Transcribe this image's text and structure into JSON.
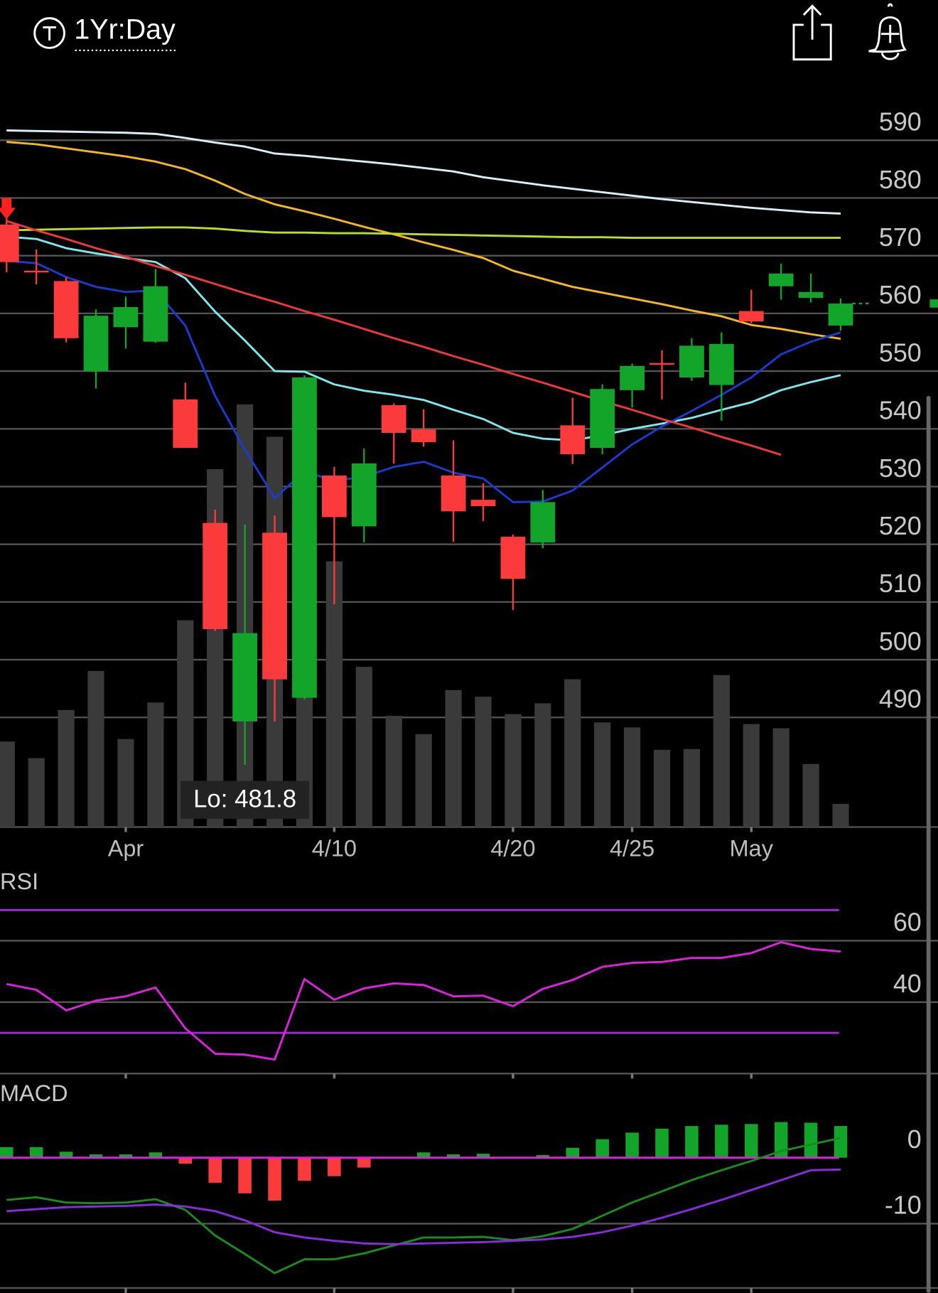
{
  "header": {
    "title": "1Yr:Day"
  },
  "chart_data": [
    {
      "type": "candlestick",
      "categories": [
        null,
        null,
        null,
        null,
        "Apr",
        null,
        null,
        null,
        null,
        null,
        null,
        "4/10",
        null,
        null,
        null,
        null,
        null,
        "4/20",
        null,
        null,
        null,
        "4/25",
        null,
        null,
        null,
        "May",
        null,
        null,
        null
      ],
      "open": [
        575.4,
        567.4,
        565.6,
        550.0,
        557.6,
        555.1,
        545.1,
        523.7,
        489.3,
        522.0,
        493.4,
        531.9,
        523.1,
        544.1,
        539.9,
        531.9,
        527.7,
        521.3,
        520.3,
        540.6,
        536.7,
        546.7,
        551.4,
        548.9,
        547.6,
        560.4,
        564.7,
        562.7,
        557.9
      ],
      "high": [
        578.0,
        571.1,
        566.3,
        560.7,
        562.9,
        567.7,
        548.0,
        526.0,
        523.4,
        525.0,
        549.3,
        533.4,
        536.6,
        544.4,
        543.4,
        538.0,
        530.6,
        521.7,
        529.4,
        545.4,
        547.7,
        551.3,
        553.6,
        555.7,
        556.7,
        564.1,
        568.6,
        566.9,
        562.6
      ],
      "low": [
        567.1,
        565.0,
        555.0,
        547.0,
        553.9,
        554.9,
        536.7,
        505.0,
        481.8,
        489.3,
        493.1,
        509.6,
        520.3,
        534.0,
        536.9,
        520.4,
        524.0,
        508.6,
        519.3,
        533.9,
        535.6,
        543.7,
        545.1,
        548.3,
        541.4,
        558.3,
        562.4,
        561.9,
        557.0
      ],
      "close": [
        568.9,
        567.1,
        555.7,
        559.6,
        561.1,
        564.7,
        536.7,
        505.3,
        504.6,
        496.6,
        548.9,
        524.7,
        534.0,
        539.3,
        537.7,
        525.7,
        526.6,
        514.0,
        527.3,
        535.6,
        546.9,
        550.9,
        551.1,
        554.4,
        554.7,
        558.6,
        566.9,
        563.7,
        561.7
      ],
      "up_color": "#12a52a",
      "down_color": "#fb3b3b",
      "volume": [
        103,
        83,
        141,
        188,
        106,
        150,
        249,
        431,
        509,
        470,
        520,
        320,
        193,
        134,
        112,
        165,
        157,
        136,
        149,
        178,
        126,
        120,
        93,
        94,
        183,
        124,
        119,
        76,
        28
      ],
      "volume_color": "#3a3a3a",
      "series": [
        {
          "color": "#d8f0f5",
          "values": [
            591.7,
            591.6,
            591.5,
            591.4,
            591.3,
            591.1,
            590.4,
            589.6,
            588.9,
            587.7,
            587.3,
            586.8,
            586.3,
            585.8,
            585.2,
            584.6,
            583.6,
            582.9,
            582.2,
            581.6,
            581.0,
            580.4,
            579.8,
            579.3,
            578.8,
            578.3,
            577.9,
            577.5,
            577.3
          ]
        },
        {
          "color": "#f5b820",
          "values": [
            589.7,
            589.3,
            588.6,
            587.9,
            587.2,
            586.3,
            585.0,
            583.0,
            580.7,
            578.9,
            577.7,
            576.4,
            575.0,
            573.7,
            572.3,
            571.0,
            569.6,
            567.4,
            566.0,
            564.6,
            563.6,
            562.6,
            561.6,
            560.5,
            559.5,
            558.0,
            557.3,
            556.4,
            555.6
          ]
        },
        {
          "color": "#b8e020",
          "values": [
            574.4,
            574.5,
            574.6,
            574.7,
            574.8,
            574.9,
            574.9,
            574.7,
            574.3,
            574.0,
            574.0,
            573.9,
            573.9,
            573.8,
            573.7,
            573.6,
            573.5,
            573.4,
            573.3,
            573.2,
            573.2,
            573.1,
            573.1,
            573.1,
            573.1,
            573.1,
            573.1,
            573.1,
            573.1
          ]
        },
        {
          "color": "#7fe8ec",
          "values": [
            573.3,
            572.9,
            571.3,
            570.4,
            569.6,
            568.9,
            566.1,
            560.3,
            555.3,
            550.0,
            549.9,
            547.7,
            546.6,
            545.9,
            545.0,
            543.3,
            541.7,
            539.3,
            538.3,
            538.0,
            538.9,
            540.0,
            540.9,
            541.9,
            543.3,
            544.6,
            546.7,
            548.1,
            549.3
          ]
        },
        {
          "color": "#1a3ad0",
          "values": [
            569.1,
            568.7,
            566.3,
            564.6,
            563.7,
            564.0,
            557.9,
            545.7,
            536.4,
            528.0,
            532.6,
            531.0,
            531.7,
            533.4,
            534.3,
            532.4,
            531.4,
            527.3,
            527.4,
            529.3,
            533.3,
            537.3,
            540.4,
            543.1,
            545.9,
            548.9,
            552.9,
            555.1,
            556.7
          ]
        },
        {
          "color": "#f03838",
          "values": [
            576.0,
            574.4,
            572.9,
            571.3,
            569.8,
            568.2,
            566.7,
            565.1,
            563.5,
            562.0,
            560.4,
            558.9,
            557.3,
            555.7,
            554.2,
            552.6,
            551.1,
            549.5,
            548.0,
            546.4,
            544.8,
            543.3,
            541.7,
            540.2,
            538.6,
            537.1,
            535.5,
            null,
            null
          ]
        }
      ],
      "annotation": "Lo: 481.8",
      "ylim": [
        471,
        600
      ],
      "yticks": [
        490,
        500,
        510,
        520,
        530,
        540,
        550,
        560,
        570,
        580,
        590
      ],
      "grid": true,
      "grid_color": "#555555"
    },
    {
      "type": "line",
      "title": "RSI",
      "series": [
        {
          "color": "#e020e0",
          "values": [
            45.9,
            44.0,
            37.3,
            40.5,
            41.9,
            44.8,
            31.5,
            23.2,
            22.9,
            21.3,
            47.5,
            40.8,
            44.5,
            46.1,
            45.6,
            41.9,
            42.1,
            38.7,
            44.3,
            47.2,
            51.5,
            52.8,
            53.1,
            54.4,
            54.4,
            56.0,
            59.5,
            57.3,
            56.5
          ]
        }
      ],
      "levels": [
        30,
        70
      ],
      "level_color": "#9b30d0",
      "ylim": [
        17,
        75
      ],
      "yticks": [
        40,
        60
      ],
      "grid": true,
      "grid_color": "#555555"
    },
    {
      "type": "bar",
      "title": "MACD",
      "values": [
        1.6,
        1.6,
        0.9,
        0.5,
        0.5,
        0.8,
        -0.9,
        -3.8,
        -5.4,
        -6.5,
        -3.5,
        -2.8,
        -1.5,
        0,
        0.8,
        0.5,
        0.6,
        0,
        0.4,
        1.5,
        2.8,
        3.8,
        4.4,
        4.8,
        5.0,
        5.1,
        5.4,
        5.3,
        4.8
      ],
      "up_color": "#12a52a",
      "down_color": "#fb3b3b",
      "series": [
        {
          "color": "#1a8c1a",
          "values": [
            -6.4,
            -6.0,
            -6.8,
            -6.9,
            -6.8,
            -6.3,
            -7.9,
            -11.8,
            -14.6,
            -17.5,
            -15.4,
            -15.4,
            -14.5,
            -13.3,
            -12.1,
            -12.1,
            -12.0,
            -12.5,
            -11.9,
            -10.8,
            -8.8,
            -6.8,
            -5.1,
            -3.4,
            -1.9,
            -0.5,
            1.0,
            2.0,
            3.0
          ]
        },
        {
          "color": "#8a2be2",
          "values": [
            -8.1,
            -7.8,
            -7.5,
            -7.4,
            -7.3,
            -7.1,
            -7.4,
            -8.1,
            -9.5,
            -11.3,
            -12.1,
            -12.6,
            -13.0,
            -13.1,
            -13.0,
            -12.9,
            -12.8,
            -12.6,
            -12.4,
            -12.0,
            -11.3,
            -10.3,
            -9.1,
            -7.8,
            -6.4,
            -4.9,
            -3.4,
            -1.9,
            -1.8
          ]
        }
      ],
      "zero_line_color": "#e020e0",
      "ylim": [
        -20,
        8
      ],
      "yticks": [
        -10,
        0
      ],
      "grid": true,
      "grid_color": "#555555"
    }
  ]
}
